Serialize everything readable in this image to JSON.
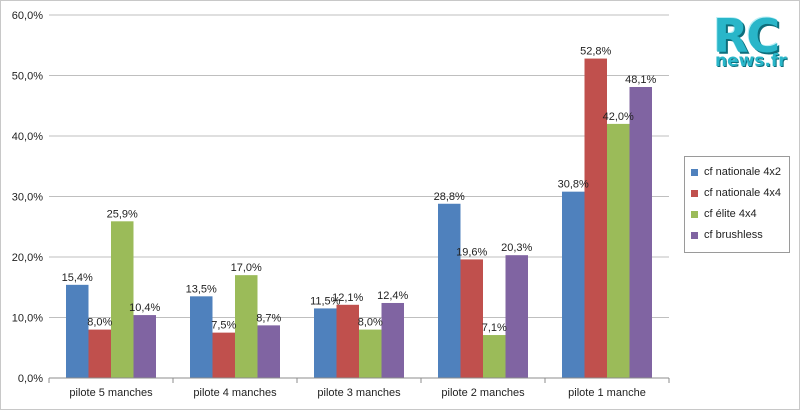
{
  "logo": {
    "main": "RC",
    "sub": "news.fr"
  },
  "colors": {
    "grid": "#bfbfbf",
    "axis": "#8c8c8c",
    "label": "#222222"
  },
  "chart_data": {
    "type": "bar",
    "title": "",
    "xlabel": "",
    "ylabel": "",
    "ylim": [
      0,
      60
    ],
    "yticks": [
      0,
      10,
      20,
      30,
      40,
      50,
      60
    ],
    "ytick_labels": [
      "0,0%",
      "10,0%",
      "20,0%",
      "30,0%",
      "40,0%",
      "50,0%",
      "60,0%"
    ],
    "grid": true,
    "legend_position": "right",
    "categories": [
      "pilote 5 manches",
      "pilote 4 manches",
      "pilote 3 manches",
      "pilote 2 manches",
      "pilote 1 manche"
    ],
    "series": [
      {
        "name": "cf nationale 4x2",
        "color": "#4f81bd",
        "values": [
          15.4,
          13.5,
          11.5,
          28.8,
          30.8
        ],
        "labels": [
          "15,4%",
          "13,5%",
          "11,5%",
          "28,8%",
          "30,8%"
        ]
      },
      {
        "name": "cf nationale 4x4",
        "color": "#c0504d",
        "values": [
          8.0,
          7.5,
          12.1,
          19.6,
          52.8
        ],
        "labels": [
          "8,0%",
          "7,5%",
          "12,1%",
          "19,6%",
          "52,8%"
        ]
      },
      {
        "name": "cf élite 4x4",
        "color": "#9bbb59",
        "values": [
          25.9,
          17.0,
          8.0,
          7.1,
          42.0
        ],
        "labels": [
          "25,9%",
          "17,0%",
          "8,0%",
          "7,1%",
          "42,0%"
        ]
      },
      {
        "name": "cf brushless",
        "color": "#8064a2",
        "values": [
          10.4,
          8.7,
          12.4,
          20.3,
          48.1
        ],
        "labels": [
          "10,4%",
          "8,7%",
          "12,4%",
          "20,3%",
          "48,1%"
        ]
      }
    ]
  }
}
